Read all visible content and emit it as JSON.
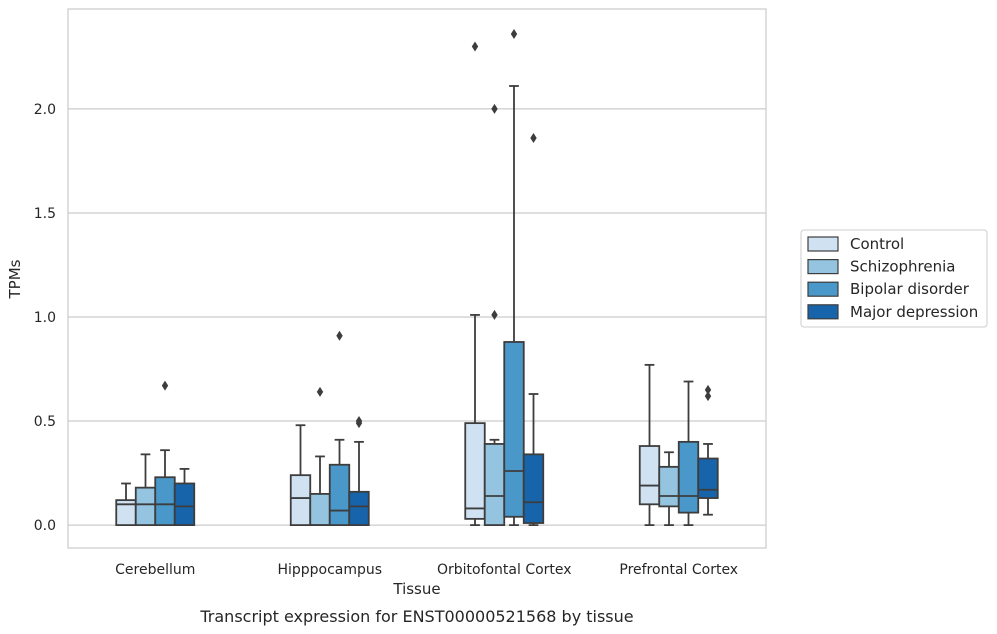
{
  "chart_data": {
    "type": "box",
    "caption": "Transcript expression for ENST00000521568 by tissue",
    "xlabel": "Tissue",
    "ylabel": "TPMs",
    "ylim": [
      -0.11,
      2.48
    ],
    "yticks": [
      0.0,
      0.5,
      1.0,
      1.5,
      2.0
    ],
    "ytick_labels": [
      "0.0",
      "0.5",
      "1.0",
      "1.5",
      "2.0"
    ],
    "grid": "horizontal",
    "legend_position": "right",
    "categories": [
      "Cerebellum",
      "Hipppocampus",
      "Orbitofontal Cortex",
      "Prefrontal Cortex"
    ],
    "series": [
      {
        "name": "Control",
        "color": "#d0e1f2",
        "boxes": [
          {
            "whislo": 0.0,
            "q1": 0.0,
            "med": 0.1,
            "q3": 0.12,
            "whishi": 0.2,
            "fliers": []
          },
          {
            "whislo": 0.0,
            "q1": 0.0,
            "med": 0.13,
            "q3": 0.24,
            "whishi": 0.48,
            "fliers": []
          },
          {
            "whislo": 0.0,
            "q1": 0.03,
            "med": 0.08,
            "q3": 0.49,
            "whishi": 1.01,
            "fliers": [
              2.3
            ]
          },
          {
            "whislo": 0.0,
            "q1": 0.1,
            "med": 0.19,
            "q3": 0.38,
            "whishi": 0.77,
            "fliers": []
          }
        ]
      },
      {
        "name": "Schizophrenia",
        "color": "#94c4df",
        "boxes": [
          {
            "whislo": 0.0,
            "q1": 0.0,
            "med": 0.1,
            "q3": 0.18,
            "whishi": 0.34,
            "fliers": []
          },
          {
            "whislo": 0.0,
            "q1": 0.0,
            "med": 0.0,
            "q3": 0.15,
            "whishi": 0.33,
            "fliers": [
              0.64
            ]
          },
          {
            "whislo": 0.0,
            "q1": 0.0,
            "med": 0.14,
            "q3": 0.39,
            "whishi": 0.41,
            "fliers": [
              1.01,
              2.0
            ]
          },
          {
            "whislo": 0.0,
            "q1": 0.09,
            "med": 0.14,
            "q3": 0.28,
            "whishi": 0.35,
            "fliers": []
          }
        ]
      },
      {
        "name": "Bipolar disorder",
        "color": "#4a98c9",
        "boxes": [
          {
            "whislo": 0.0,
            "q1": 0.0,
            "med": 0.1,
            "q3": 0.23,
            "whishi": 0.36,
            "fliers": [
              0.67
            ]
          },
          {
            "whislo": 0.0,
            "q1": 0.0,
            "med": 0.07,
            "q3": 0.29,
            "whishi": 0.41,
            "fliers": [
              0.91
            ]
          },
          {
            "whislo": 0.0,
            "q1": 0.04,
            "med": 0.26,
            "q3": 0.88,
            "whishi": 2.11,
            "fliers": [
              2.36
            ]
          },
          {
            "whislo": 0.0,
            "q1": 0.06,
            "med": 0.14,
            "q3": 0.4,
            "whishi": 0.69,
            "fliers": []
          }
        ]
      },
      {
        "name": "Major depression",
        "color": "#1764ab",
        "boxes": [
          {
            "whislo": 0.0,
            "q1": 0.0,
            "med": 0.09,
            "q3": 0.2,
            "whishi": 0.27,
            "fliers": []
          },
          {
            "whislo": 0.0,
            "q1": 0.0,
            "med": 0.09,
            "q3": 0.16,
            "whishi": 0.4,
            "fliers": [
              0.49,
              0.5
            ]
          },
          {
            "whislo": 0.0,
            "q1": 0.01,
            "med": 0.11,
            "q3": 0.34,
            "whishi": 0.63,
            "fliers": [
              1.86
            ]
          },
          {
            "whislo": 0.05,
            "q1": 0.13,
            "med": 0.17,
            "q3": 0.32,
            "whishi": 0.39,
            "fliers": [
              0.62,
              0.65
            ]
          }
        ]
      }
    ]
  }
}
